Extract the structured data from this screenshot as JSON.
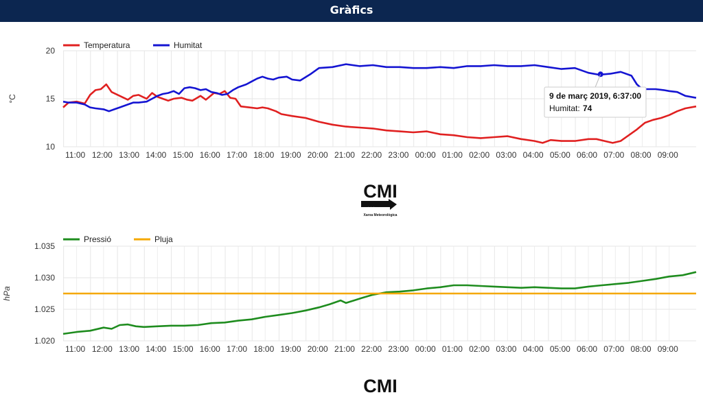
{
  "page": {
    "title": "Gràfics"
  },
  "colors": {
    "header_bg": "#0c2650",
    "temperature": "#e02020",
    "humidity": "#1414d2",
    "pressure": "#1e8c1e",
    "rain": "#f5a800",
    "grid": "#e6e6e6",
    "axis_text": "#333333"
  },
  "tooltip": {
    "title": "9 de març 2019, 6:37:00",
    "label": "Humitat:",
    "value": "74"
  },
  "logo": {
    "text": "CMI",
    "subtitle": "Xarxa Meteorològica"
  },
  "chart_data": [
    {
      "type": "line",
      "ylabel": "°C",
      "ylim": [
        10,
        20
      ],
      "yticks": [
        "20",
        "15",
        "10"
      ],
      "ytick_values": [
        20,
        15,
        10
      ],
      "xlim": [
        10.5,
        34.0
      ],
      "xticks": [
        "11:00",
        "12:00",
        "13:00",
        "14:00",
        "15:00",
        "16:00",
        "17:00",
        "18:00",
        "19:00",
        "20:00",
        "21:00",
        "22:00",
        "23:00",
        "00:00",
        "01:00",
        "02:00",
        "03:00",
        "04:00",
        "05:00",
        "06:00",
        "07:00",
        "08:00",
        "09:00"
      ],
      "xtick_values": [
        11,
        12,
        13,
        14,
        15,
        16,
        17,
        18,
        19,
        20,
        21,
        22,
        23,
        24,
        25,
        26,
        27,
        28,
        29,
        30,
        31,
        32,
        33
      ],
      "grid": true,
      "legend": "top-left",
      "series": [
        {
          "name": "Temperatura",
          "color": "#e02020",
          "x": [
            10.5,
            10.7,
            11.0,
            11.3,
            11.5,
            11.7,
            11.9,
            12.1,
            12.3,
            12.6,
            12.9,
            13.1,
            13.3,
            13.6,
            13.8,
            14.0,
            14.2,
            14.4,
            14.6,
            14.9,
            15.1,
            15.3,
            15.6,
            15.8,
            16.1,
            16.3,
            16.5,
            16.7,
            16.9,
            17.1,
            17.4,
            17.7,
            17.9,
            18.1,
            18.4,
            18.6,
            19.0,
            19.5,
            20.0,
            20.5,
            21.0,
            21.5,
            22.0,
            22.5,
            23.0,
            23.5,
            24.0,
            24.5,
            25.0,
            25.5,
            26.0,
            26.5,
            27.0,
            27.5,
            28.0,
            28.3,
            28.6,
            29.0,
            29.5,
            30.0,
            30.3,
            30.6,
            30.9,
            31.2,
            31.5,
            31.8,
            32.1,
            32.4,
            32.7,
            33.0,
            33.3,
            33.6,
            34.0
          ],
          "y": [
            14.1,
            14.6,
            14.7,
            14.5,
            15.4,
            15.9,
            16.0,
            16.5,
            15.7,
            15.3,
            14.9,
            15.3,
            15.4,
            15.0,
            15.6,
            15.2,
            15.0,
            14.8,
            15.0,
            15.1,
            14.9,
            14.8,
            15.3,
            14.9,
            15.6,
            15.5,
            15.8,
            15.1,
            15.0,
            14.2,
            14.1,
            14.0,
            14.1,
            14.0,
            13.7,
            13.4,
            13.2,
            13.0,
            12.6,
            12.3,
            12.1,
            12.0,
            11.9,
            11.7,
            11.6,
            11.5,
            11.6,
            11.3,
            11.2,
            11.0,
            10.9,
            11.0,
            11.1,
            10.8,
            10.6,
            10.4,
            10.7,
            10.6,
            10.6,
            10.8,
            10.8,
            10.6,
            10.4,
            10.6,
            11.2,
            11.8,
            12.5,
            12.8,
            13.0,
            13.3,
            13.7,
            14.0,
            14.2
          ]
        },
        {
          "name": "Humitat",
          "color": "#1414d2",
          "x": [
            10.5,
            10.7,
            11.0,
            11.3,
            11.5,
            11.7,
            12.0,
            12.2,
            12.4,
            12.6,
            12.9,
            13.1,
            13.3,
            13.6,
            13.8,
            14.0,
            14.2,
            14.4,
            14.6,
            14.8,
            15.0,
            15.2,
            15.4,
            15.6,
            15.8,
            16.0,
            16.2,
            16.4,
            16.6,
            16.8,
            17.0,
            17.3,
            17.5,
            17.7,
            17.9,
            18.1,
            18.3,
            18.5,
            18.8,
            19.0,
            19.3,
            19.7,
            20.0,
            20.5,
            21.0,
            21.5,
            22.0,
            22.5,
            23.0,
            23.5,
            24.0,
            24.5,
            25.0,
            25.5,
            26.0,
            26.5,
            27.0,
            27.5,
            28.0,
            28.5,
            29.0,
            29.5,
            30.0,
            30.4,
            30.8,
            31.2,
            31.6,
            31.8,
            32.0,
            32.2,
            32.5,
            32.8,
            33.0,
            33.3,
            33.6,
            34.0
          ],
          "y": [
            14.7,
            14.6,
            14.6,
            14.4,
            14.1,
            14.0,
            13.9,
            13.7,
            13.9,
            14.1,
            14.4,
            14.6,
            14.6,
            14.7,
            15.0,
            15.3,
            15.5,
            15.6,
            15.8,
            15.5,
            16.1,
            16.2,
            16.1,
            15.9,
            16.0,
            15.7,
            15.6,
            15.4,
            15.5,
            15.9,
            16.2,
            16.5,
            16.8,
            17.1,
            17.3,
            17.1,
            17.0,
            17.2,
            17.3,
            17.0,
            16.9,
            17.6,
            18.2,
            18.3,
            18.6,
            18.4,
            18.5,
            18.3,
            18.3,
            18.2,
            18.2,
            18.3,
            18.2,
            18.4,
            18.4,
            18.5,
            18.4,
            18.4,
            18.5,
            18.3,
            18.1,
            18.2,
            17.7,
            17.5,
            17.6,
            17.8,
            17.4,
            16.5,
            16.0,
            16.0,
            16.0,
            15.9,
            15.8,
            15.7,
            15.3,
            15.1
          ]
        }
      ]
    },
    {
      "type": "line",
      "ylabel": "hPa",
      "ylim": [
        1.02,
        1.035
      ],
      "yticks": [
        "1.035",
        "1.030",
        "1.025",
        "1.020"
      ],
      "ytick_values": [
        1.035,
        1.03,
        1.025,
        1.02
      ],
      "xlim": [
        10.5,
        34.0
      ],
      "xticks": [
        "11:00",
        "12:00",
        "13:00",
        "14:00",
        "15:00",
        "16:00",
        "17:00",
        "18:00",
        "19:00",
        "20:00",
        "21:00",
        "22:00",
        "23:00",
        "00:00",
        "01:00",
        "02:00",
        "03:00",
        "04:00",
        "05:00",
        "06:00",
        "07:00",
        "08:00",
        "09:00"
      ],
      "xtick_values": [
        11,
        12,
        13,
        14,
        15,
        16,
        17,
        18,
        19,
        20,
        21,
        22,
        23,
        24,
        25,
        26,
        27,
        28,
        29,
        30,
        31,
        32,
        33
      ],
      "grid": true,
      "legend": "top-left",
      "series": [
        {
          "name": "Pressió",
          "color": "#1e8c1e",
          "x": [
            10.5,
            11.0,
            11.5,
            12.0,
            12.3,
            12.6,
            12.9,
            13.2,
            13.5,
            14.0,
            14.5,
            15.0,
            15.5,
            16.0,
            16.5,
            17.0,
            17.5,
            18.0,
            18.5,
            19.0,
            19.5,
            20.0,
            20.4,
            20.8,
            21.0,
            21.3,
            21.6,
            22.0,
            22.5,
            23.0,
            23.5,
            24.0,
            24.5,
            25.0,
            25.5,
            26.0,
            26.5,
            27.0,
            27.5,
            28.0,
            28.5,
            29.0,
            29.5,
            30.0,
            30.5,
            31.0,
            31.5,
            32.0,
            32.5,
            33.0,
            33.5,
            34.0
          ],
          "y": [
            1.0211,
            1.0214,
            1.0216,
            1.0221,
            1.0219,
            1.0225,
            1.0226,
            1.0223,
            1.0222,
            1.0223,
            1.0224,
            1.0224,
            1.0225,
            1.0228,
            1.0229,
            1.0232,
            1.0234,
            1.0238,
            1.0241,
            1.0244,
            1.0248,
            1.0253,
            1.0258,
            1.0264,
            1.026,
            1.0264,
            1.0268,
            1.0273,
            1.0277,
            1.0278,
            1.028,
            1.0283,
            1.0285,
            1.0288,
            1.0288,
            1.0287,
            1.0286,
            1.0285,
            1.0284,
            1.0285,
            1.0284,
            1.0283,
            1.0283,
            1.0286,
            1.0288,
            1.029,
            1.0292,
            1.0295,
            1.0298,
            1.0302,
            1.0304,
            1.0309
          ]
        },
        {
          "name": "Pluja",
          "color": "#f5a800",
          "x": [
            10.5,
            34.0
          ],
          "y": [
            1.0275,
            1.0275
          ]
        }
      ]
    }
  ]
}
